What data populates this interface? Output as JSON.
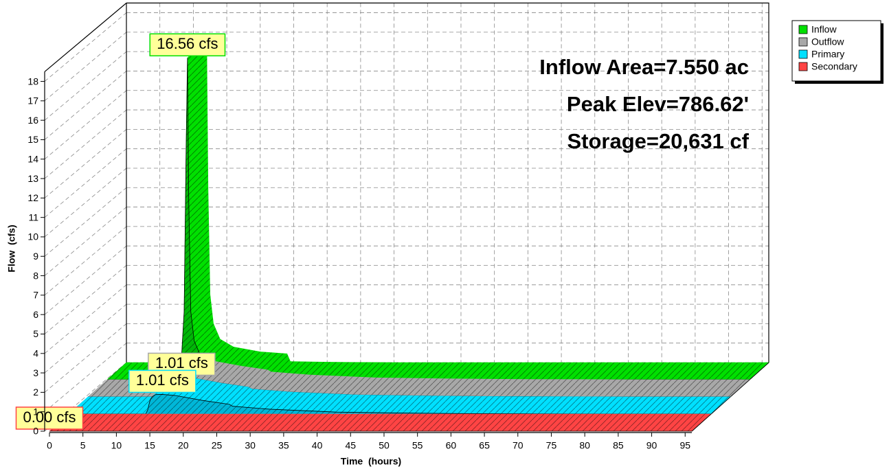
{
  "chart_data": {
    "type": "area3d",
    "annotations": [
      "Inflow Area=7.550 ac",
      "Peak Elev=786.62'",
      "Storage=20,631 cf"
    ],
    "xlabel": "Time  (hours)",
    "ylabel": "Flow  (cfs)",
    "x": [
      0,
      5,
      10,
      11,
      11.5,
      11.8,
      12,
      12.2,
      12.5,
      13,
      14,
      16,
      20,
      24,
      24.5,
      30,
      40,
      50,
      60,
      70,
      80,
      90,
      96
    ],
    "series": [
      {
        "name": "Inflow",
        "color": "#00e000",
        "peak_label": "16.56 cfs",
        "values": [
          0,
          0,
          0.2,
          0.5,
          3.5,
          12,
          16.56,
          9,
          3.5,
          2,
          1.2,
          0.8,
          0.55,
          0.45,
          0.05,
          0.02,
          0,
          0,
          0,
          0,
          0,
          0,
          0
        ]
      },
      {
        "name": "Outflow",
        "color": "#a8a8a8",
        "peak_label": "1.01 cfs",
        "values": [
          0,
          0,
          0,
          0,
          0,
          0.2,
          0.5,
          0.75,
          0.9,
          1.0,
          1.01,
          0.95,
          0.7,
          0.5,
          0.4,
          0.25,
          0.1,
          0.05,
          0.02,
          0.01,
          0,
          0,
          0
        ]
      },
      {
        "name": "Primary",
        "color": "#00e0ff",
        "peak_label": "1.01 cfs",
        "values": [
          0,
          0,
          0,
          0,
          0,
          0.2,
          0.5,
          0.75,
          0.9,
          1.0,
          1.01,
          0.95,
          0.7,
          0.5,
          0.4,
          0.25,
          0.1,
          0.05,
          0.02,
          0.01,
          0,
          0,
          0
        ]
      },
      {
        "name": "Secondary",
        "color": "#ff4444",
        "peak_label": "0.00 cfs",
        "values": [
          0,
          0,
          0,
          0,
          0,
          0,
          0,
          0,
          0,
          0,
          0,
          0,
          0,
          0,
          0,
          0,
          0,
          0,
          0,
          0,
          0,
          0,
          0
        ]
      }
    ],
    "xlim": [
      0,
      96
    ],
    "xticks": [
      0,
      5,
      10,
      15,
      20,
      25,
      30,
      35,
      40,
      45,
      50,
      55,
      60,
      65,
      70,
      75,
      80,
      85,
      90,
      95
    ],
    "ylim": [
      0,
      18.5
    ],
    "yticks": [
      0,
      1,
      2,
      3,
      4,
      5,
      6,
      7,
      8,
      9,
      10,
      11,
      12,
      13,
      14,
      15,
      16,
      17,
      18
    ],
    "grid": true,
    "legend": "top-right"
  }
}
